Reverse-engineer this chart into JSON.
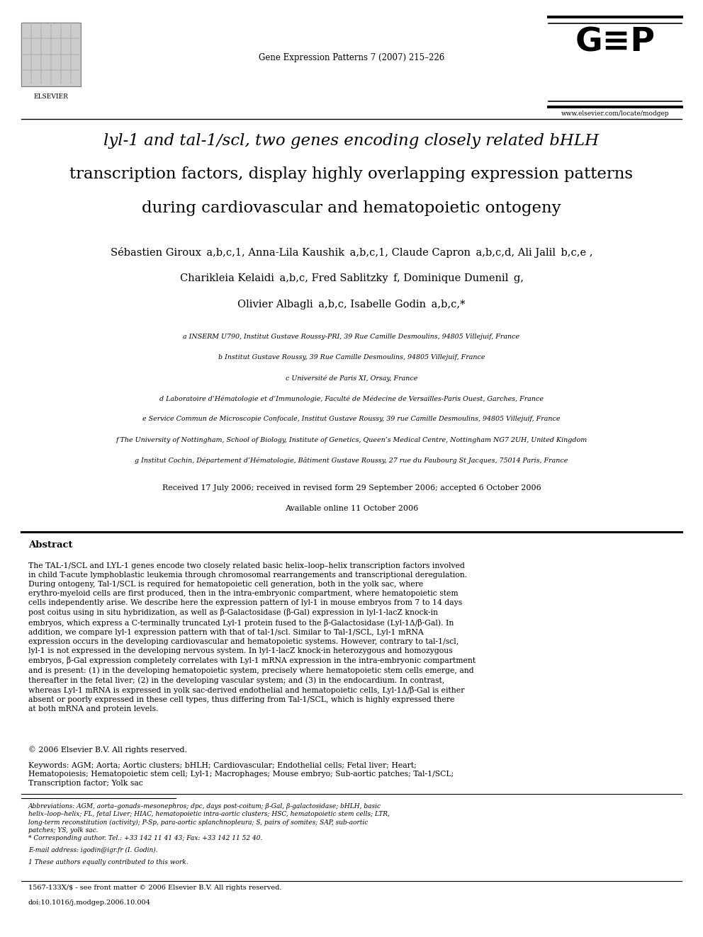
{
  "page_width": 9.92,
  "page_height": 13.23,
  "bg_color": "#ffffff",
  "journal_line": "Gene Expression Patterns 7 (2007) 215–226",
  "website_line": "www.elsevier.com/locate/modgep",
  "title_line1": "lyl-1 and tal-1/scl, two genes encoding closely related bHLH",
  "title_line2": "transcription factors, display highly overlapping expression patterns",
  "title_line3": "during cardiovascular and hematopoietic ontogeny",
  "authors_line1": "Sébastien Giroux  a,b,c,1, Anna-Lila Kaushik  a,b,c,1, Claude Capron  a,b,c,d, Ali Jalil  b,c,e ,",
  "authors_line2": "Charikleia Kelaidi  a,b,c, Fred Sablitzky  f, Dominique Dumenil  g,",
  "authors_line3": "Olivier Albagli  a,b,c, Isabelle Godin  a,b,c,*",
  "affil_a": "a INSERM U790, Institut Gustave Roussy-PRI, 39 Rue Camille Desmoulins, 94805 Villejuif, France",
  "affil_b": "b Institut Gustave Roussy, 39 Rue Camille Desmoulins, 94805 Villejuif, France",
  "affil_c": "c Université de Paris XI, Orsay, France",
  "affil_d": "d Laboratoire d’Hématologie et d’Immunologie, Faculté de Médecine de Versailles-Paris Ouest, Garches, France",
  "affil_e": "e Service Commun de Microscopie Confocale, Institut Gustave Roussy, 39 rue Camille Desmoulins, 94805 Villejuif, France",
  "affil_f": "f The University of Nottingham, School of Biology, Institute of Genetics, Queen’s Medical Centre, Nottingham NG7 2UH, United Kingdom",
  "affil_g": "g Institut Cochin, Département d’Hématologie, Bâtiment Gustave Roussy, 27 rue du Faubourg St Jacques, 75014 Paris, France",
  "received_line1": "Received 17 July 2006; received in revised form 29 September 2006; accepted 6 October 2006",
  "received_line2": "Available online 11 October 2006",
  "abstract_heading": "Abstract",
  "abstract_text": "The TAL-1/SCL and LYL-1 genes encode two closely related basic helix–loop–helix transcription factors involved in child T-acute lymphoblastic leukemia through chromosomal rearrangements and transcriptional deregulation. During ontogeny, Tal-1/SCL is required for hematopoietic cell generation, both in the yolk sac, where erythro-myeloid cells are first produced, then in the intra-embryonic compartment, where hematopoietic stem cells independently arise. We describe here the expression pattern of lyl-1 in mouse embryos from 7 to 14 days post coitus using in situ hybridization, as well as β-Galactosidase (β-Gal) expression in lyl-1-lacZ knock-in embryos, which express a C-terminally truncated Lyl-1 protein fused to the β-Galactosidase (Lyl-1Δ/β-Gal). In addition, we compare lyl-1 expression pattern with that of tal-1/scl. Similar to Tal-1/SCL, Lyl-1 mRNA expression occurs in the developing cardiovascular and hematopoietic systems. However, contrary to tal-1/scl, lyl-1 is not expressed in the developing nervous system. In lyl-1-lacZ knock-in heterozygous and homozygous embryos, β-Gal expression completely correlates with Lyl-1 mRNA expression in the intra-embryonic compartment and is present: (1) in the developing hematopoietic system, precisely where hematopoietic stem cells emerge, and thereafter in the fetal liver; (2) in the developing vascular system; and (3) in the endocardium. In contrast, whereas Lyl-1 mRNA is expressed in yolk sac-derived endothelial and hematopoietic cells, Lyl-1Δ/β-Gal is either absent or poorly expressed in these cell types, thus differing from Tal-1/SCL, which is highly expressed there at both mRNA and protein levels.",
  "copyright_line": "© 2006 Elsevier B.V. All rights reserved.",
  "keywords_line": "Keywords:  AGM; Aorta; Aortic clusters; bHLH; Cardiovascular; Endothelial cells; Fetal liver; Heart; Hematopoiesis; Hematopoietic stem cell; Lyl-1; Macrophages; Mouse embryo; Sub-aortic patches; Tal-1/SCL; Transcription factor; Yolk sac",
  "footer_abbrev": "Abbreviations: AGM, aorta–gonads–mesonephros; dpc, days post-coitum; β-Gal, β-galactosidase; bHLH, basic helix–loop–helix; FL, fetal Liver; HIAC, hematopoietic intra-aortic clusters; HSC, hematopoietic stem cells; LTR, long-term reconstitution (activity); P-Sp, para-aortic splanchnopleura; S, pairs of somites; SAP, sub-aortic patches; YS, yolk sac.",
  "footer_corresponding": "* Corresponding author. Tel.: +33 142 11 41 43; Fax: +33 142 11 52 40.",
  "footer_email": "E-mail address: igodin@igr.fr (I. Godin).",
  "footer_equal": "1 These authors equally contributed to this work.",
  "footer_issn": "1567-133X/$ - see front matter © 2006 Elsevier B.V. All rights reserved.",
  "footer_doi": "doi:10.1016/j.modgep.2006.10.004"
}
